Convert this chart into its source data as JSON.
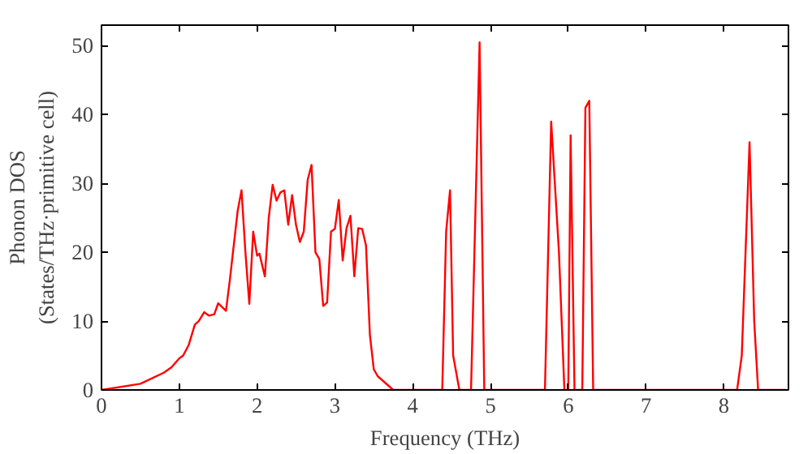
{
  "chart_data": {
    "type": "line",
    "xlabel": "Frequency (THz)",
    "ylabel": "Phonon DOS\n(States/THz·primitive cell)",
    "xlim": [
      0,
      8.83
    ],
    "ylim": [
      0,
      53
    ],
    "xticks": [
      0,
      1,
      2,
      3,
      4,
      5,
      6,
      7,
      8
    ],
    "yticks": [
      0,
      10,
      20,
      30,
      40,
      50
    ],
    "grid": false,
    "series": [
      {
        "color": "#ff0000",
        "x": [
          0,
          0.5,
          0.8,
          0.9,
          1.0,
          1.05,
          1.12,
          1.2,
          1.25,
          1.32,
          1.38,
          1.45,
          1.5,
          1.6,
          1.65,
          1.75,
          1.8,
          1.85,
          1.9,
          1.95,
          2.0,
          2.03,
          2.1,
          2.15,
          2.2,
          2.25,
          2.3,
          2.35,
          2.4,
          2.45,
          2.5,
          2.55,
          2.6,
          2.65,
          2.7,
          2.75,
          2.8,
          2.85,
          2.9,
          2.95,
          3.0,
          3.05,
          3.1,
          3.15,
          3.2,
          3.25,
          3.3,
          3.35,
          3.4,
          3.45,
          3.5,
          3.55,
          3.6,
          3.75,
          4.38,
          4.43,
          4.48,
          4.52,
          4.6,
          4.75,
          4.86,
          4.92,
          5.7,
          5.78,
          5.88,
          5.95,
          6.0,
          6.03,
          6.08,
          6.18,
          6.22,
          6.27,
          6.32,
          8.17,
          8.23,
          8.33,
          8.39,
          8.44,
          8.8
        ],
        "values": [
          0,
          0.9,
          2.5,
          3.3,
          4.6,
          5,
          6.5,
          9.5,
          10,
          11.3,
          10.8,
          11,
          12.6,
          11.5,
          16,
          26,
          29,
          20,
          12.5,
          23,
          19.5,
          19.8,
          16.5,
          25,
          29.8,
          27.5,
          28.7,
          29,
          24,
          28.3,
          24,
          21.5,
          23,
          30.5,
          32.7,
          20,
          19,
          12.2,
          12.7,
          23,
          23.4,
          27.6,
          18.8,
          23.5,
          25.3,
          16.5,
          23.5,
          23.4,
          21,
          8,
          3,
          2,
          1.5,
          0,
          0,
          23,
          29,
          5,
          0,
          0,
          50.5,
          0,
          0,
          39,
          20,
          0,
          0,
          37,
          0,
          0,
          41,
          42,
          0,
          0,
          5,
          36,
          10,
          0,
          0
        ]
      }
    ]
  }
}
